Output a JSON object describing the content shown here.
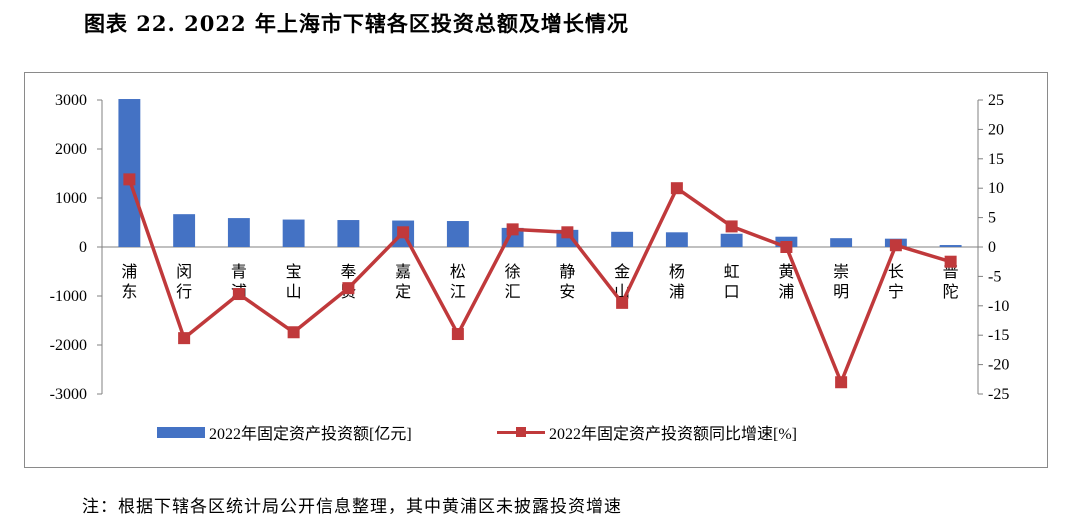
{
  "figure": {
    "title": "图表 22. 2022 年上海市下辖各区投资总额及增长情况",
    "note": "注：根据下辖各区统计局公开信息整理，其中黄浦区未披露投资增速"
  },
  "colors": {
    "bar": "#4472c4",
    "line": "#c0393b",
    "axis": "#808080"
  },
  "chart_data": {
    "type": "bar",
    "categories": [
      "浦东",
      "闵行",
      "青浦",
      "宝山",
      "奉贤",
      "嘉定",
      "松江",
      "徐汇",
      "静安",
      "金山",
      "杨浦",
      "虹口",
      "黄浦",
      "崇明",
      "长宁",
      "普陀"
    ],
    "category_label_lines": [
      [
        "浦",
        "东"
      ],
      [
        "闵",
        "行"
      ],
      [
        "青",
        "浦"
      ],
      [
        "宝",
        "山"
      ],
      [
        "奉",
        "贤"
      ],
      [
        "嘉",
        "定"
      ],
      [
        "松",
        "江"
      ],
      [
        "徐",
        "汇"
      ],
      [
        "静",
        "安"
      ],
      [
        "金",
        "山"
      ],
      [
        "杨",
        "浦"
      ],
      [
        "虹",
        "口"
      ],
      [
        "黄",
        "浦"
      ],
      [
        "崇",
        "明"
      ],
      [
        "长",
        "宁"
      ],
      [
        "普",
        "陀"
      ]
    ],
    "series": [
      {
        "name": "2022年固定资产投资额[亿元]",
        "type": "bar",
        "axis": "left",
        "values": [
          3020,
          670,
          590,
          560,
          550,
          540,
          530,
          390,
          350,
          310,
          300,
          270,
          210,
          180,
          170,
          40
        ]
      },
      {
        "name": "2022年固定资产投资额同比增速[%]",
        "type": "line",
        "axis": "right",
        "values": [
          11.5,
          -15.5,
          -8.0,
          -14.5,
          -7.0,
          2.5,
          -14.8,
          3.0,
          2.5,
          -9.5,
          10.0,
          3.5,
          0.0,
          -23.0,
          0.3,
          -2.5
        ]
      }
    ],
    "y_left": {
      "lim": [
        -3000,
        3000
      ],
      "ticks": [
        3000,
        2000,
        1000,
        0,
        -1000,
        -2000,
        -3000
      ]
    },
    "y_right": {
      "lim": [
        -25,
        25
      ],
      "ticks": [
        25,
        20,
        15,
        10,
        5,
        0,
        -5,
        -10,
        -15,
        -20,
        -25
      ]
    },
    "legend": {
      "position": "bottom",
      "items": [
        "2022年固定资产投资额[亿元]",
        "2022年固定资产投资额同比增速[%]"
      ]
    },
    "grid": false
  }
}
